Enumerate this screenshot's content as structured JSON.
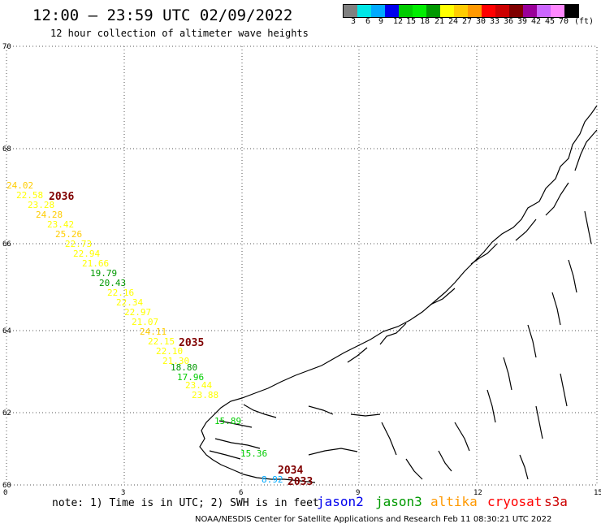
{
  "title": "12:00 – 23:59 UTC 02/09/2022",
  "subtitle": "12 hour collection of altimeter wave heights",
  "color_scale": {
    "unit": "(ft)",
    "labels": [
      "3",
      "6",
      "9",
      "12",
      "15",
      "18",
      "21",
      "24",
      "27",
      "30",
      "33",
      "36",
      "39",
      "42",
      "45",
      "70"
    ],
    "colors": [
      "#808080",
      "#00e6e6",
      "#00aaff",
      "#0000ee",
      "#00cc00",
      "#00ee00",
      "#009900",
      "#ffff00",
      "#ffcc00",
      "#ff9900",
      "#ff0000",
      "#cc0000",
      "#800000",
      "#990099",
      "#cc66ff",
      "#ff88ff",
      "#000000"
    ]
  },
  "axes": {
    "lat_labels": [
      "70",
      "68",
      "66",
      "64",
      "62",
      "60"
    ],
    "lon_labels": [
      "0",
      "3",
      "6",
      "9",
      "12",
      "15"
    ]
  },
  "tracks": [
    {
      "label": "2036",
      "color": "#800000"
    },
    {
      "label": "2035",
      "color": "#800000"
    },
    {
      "label": "2034",
      "color": "#800000"
    },
    {
      "label": "2033",
      "color": "#800000"
    }
  ],
  "observations": [
    {
      "value": "24.02",
      "color": "#ffcc00"
    },
    {
      "value": "22.58",
      "color": "#ffff00"
    },
    {
      "value": "23.28",
      "color": "#ffff00"
    },
    {
      "value": "24.28",
      "color": "#ffcc00"
    },
    {
      "value": "23.42",
      "color": "#ffff00"
    },
    {
      "value": "25.26",
      "color": "#ffcc00"
    },
    {
      "value": "22.73",
      "color": "#ffff00"
    },
    {
      "value": "22.94",
      "color": "#ffff00"
    },
    {
      "value": "21.66",
      "color": "#ffff00"
    },
    {
      "value": "19.79",
      "color": "#009900"
    },
    {
      "value": "20.43",
      "color": "#009900"
    },
    {
      "value": "22.16",
      "color": "#ffff00"
    },
    {
      "value": "22.34",
      "color": "#ffff00"
    },
    {
      "value": "22.97",
      "color": "#ffff00"
    },
    {
      "value": "21.07",
      "color": "#ffff00"
    },
    {
      "value": "24.11",
      "color": "#ffcc00"
    },
    {
      "value": "22.15",
      "color": "#ffff00"
    },
    {
      "value": "22.10",
      "color": "#ffff00"
    },
    {
      "value": "21.30",
      "color": "#ffff00"
    },
    {
      "value": "18.80",
      "color": "#009900"
    },
    {
      "value": "17.96",
      "color": "#00cc00"
    },
    {
      "value": "23.44",
      "color": "#ffff00"
    },
    {
      "value": "23.88",
      "color": "#ffff00"
    },
    {
      "value": "15.89",
      "color": "#00cc00"
    },
    {
      "value": "15.36",
      "color": "#00cc00"
    },
    {
      "value": "8.92",
      "color": "#00aaff"
    }
  ],
  "note": "note: 1) Time is in UTC; 2) SWH is in feet",
  "satellites": [
    {
      "name": "jason2",
      "color": "#0000ee"
    },
    {
      "name": "jason3",
      "color": "#009900"
    },
    {
      "name": "altika",
      "color": "#ff9900"
    },
    {
      "name": "cryosat",
      "color": "#ff0000"
    },
    {
      "name": "s3a",
      "color": "#cc0000"
    }
  ],
  "credit": "NOAA/NESDIS Center for Satellite Applications and Research   Feb 11 08:30:21 UTC 2022"
}
